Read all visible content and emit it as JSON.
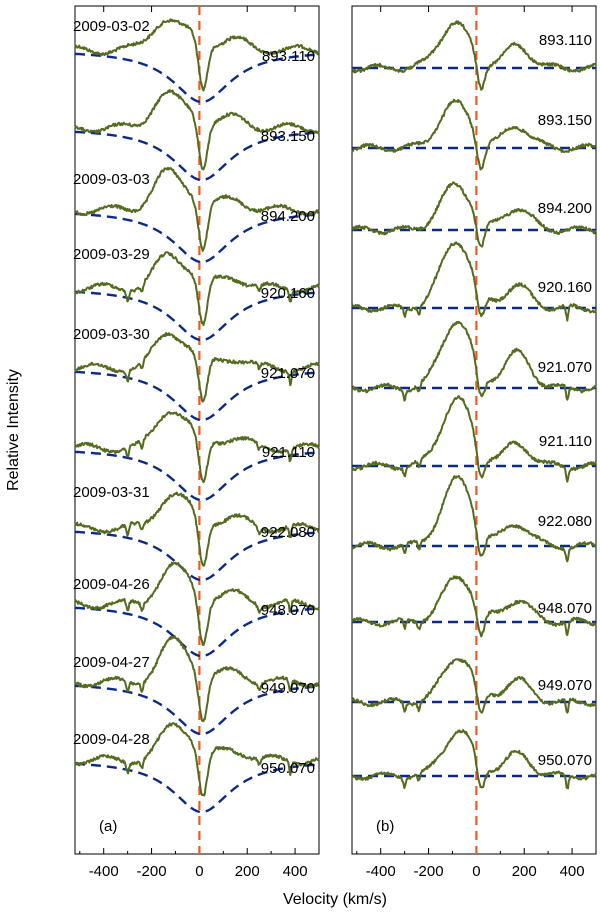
{
  "figure": {
    "xlabel": "Velocity (km/s)",
    "ylabel": "Relative Intensity"
  },
  "chart_data": [
    {
      "type": "line",
      "panel_label": "(a)",
      "xlim": [
        -520,
        500
      ],
      "xticks": [
        -400,
        -200,
        0,
        200,
        400
      ],
      "xtick_labels": [
        "-400",
        "-200",
        "0",
        "200",
        "400"
      ],
      "reference_line_x": 0,
      "colors": {
        "observed": "#556b1f",
        "fit": "#0a2a8a",
        "reference": "#f05a1e"
      },
      "spectra": [
        {
          "date": "2009-03-02",
          "label": "893.110"
        },
        {
          "date": "",
          "label": "893.150"
        },
        {
          "date": "2009-03-03",
          "label": "894.200"
        },
        {
          "date": "2009-03-29",
          "label": "920.160"
        },
        {
          "date": "2009-03-30",
          "label": "921.070"
        },
        {
          "date": "",
          "label": "921.110"
        },
        {
          "date": "2009-03-31",
          "label": "922.080"
        },
        {
          "date": "2009-04-26",
          "label": "948.070"
        },
        {
          "date": "2009-04-27",
          "label": "949.070"
        },
        {
          "date": "2009-04-28",
          "label": "950.070"
        }
      ]
    },
    {
      "type": "line",
      "panel_label": "(b)",
      "xlim": [
        -520,
        500
      ],
      "xticks": [
        -400,
        -200,
        0,
        200,
        400
      ],
      "xtick_labels": [
        "-400",
        "-200",
        "0",
        "200",
        "400"
      ],
      "reference_line_x": 0,
      "colors": {
        "observed": "#556b1f",
        "fit": "#0a2a8a",
        "reference": "#f05a1e"
      },
      "spectra": [
        {
          "label": "893.110"
        },
        {
          "label": "893.150"
        },
        {
          "label": "894.200"
        },
        {
          "label": "920.160"
        },
        {
          "label": "921.070"
        },
        {
          "label": "921.110"
        },
        {
          "label": "922.080"
        },
        {
          "label": "948.070"
        },
        {
          "label": "949.070"
        },
        {
          "label": "950.070"
        }
      ]
    }
  ]
}
